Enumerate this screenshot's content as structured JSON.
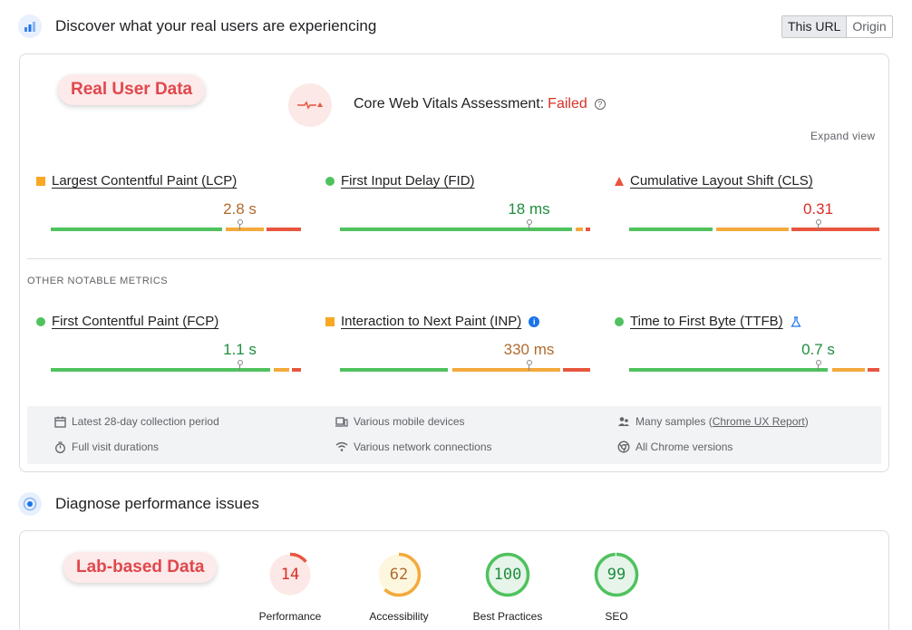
{
  "header": {
    "title": "Discover what your real users are experiencing",
    "toggle": {
      "this_url": "This URL",
      "origin": "Origin"
    }
  },
  "real_user": {
    "badge": "Real User Data",
    "assessment_label": "Core Web Vitals Assessment:",
    "assessment_status": "Failed",
    "help_glyph": "?",
    "expand_view": "Expand view",
    "core_metrics": [
      {
        "label": "Largest Contentful Paint (LCP)",
        "value": "2.8 s",
        "rating": "avg",
        "indicator": "square",
        "dist": [
          0.69,
          0.16,
          0.15
        ],
        "marker": 0.75
      },
      {
        "label": "First Input Delay (FID)",
        "value": "18 ms",
        "rating": "good",
        "indicator": "circle",
        "dist": [
          0.93,
          0.04,
          0.03
        ],
        "marker": 0.75
      },
      {
        "label": "Cumulative Layout Shift (CLS)",
        "value": "0.31",
        "rating": "poor",
        "indicator": "triangle",
        "dist": [
          0.34,
          0.3,
          0.36
        ],
        "marker": 0.75
      }
    ],
    "other_label": "OTHER NOTABLE METRICS",
    "other_metrics": [
      {
        "label": "First Contentful Paint (FCP)",
        "value": "1.1 s",
        "rating": "good",
        "indicator": "circle",
        "dist": [
          0.88,
          0.07,
          0.05
        ],
        "marker": 0.75,
        "badge": ""
      },
      {
        "label": "Interaction to Next Paint (INP)",
        "value": "330 ms",
        "rating": "avg",
        "indicator": "square",
        "dist": [
          0.44,
          0.44,
          0.12
        ],
        "marker": 0.75,
        "badge": "info"
      },
      {
        "label": "Time to First Byte (TTFB)",
        "value": "0.7 s",
        "rating": "good",
        "indicator": "circle",
        "dist": [
          0.8,
          0.14,
          0.06
        ],
        "marker": 0.75,
        "badge": "flask"
      }
    ],
    "info_glyph": "i",
    "footer": {
      "collection_period": "Latest 28-day collection period",
      "devices": "Various mobile devices",
      "samples_prefix": "Many samples (",
      "samples_link": "Chrome UX Report",
      "samples_suffix": ")",
      "visit_durations": "Full visit durations",
      "network": "Various network connections",
      "chrome_versions": "All Chrome versions"
    }
  },
  "diagnose": {
    "title": "Diagnose performance issues",
    "badge": "Lab-based Data",
    "scores": [
      {
        "label": "Performance",
        "value": 14,
        "rating": "poor"
      },
      {
        "label": "Accessibility",
        "value": 62,
        "rating": "avg"
      },
      {
        "label": "Best Practices",
        "value": 100,
        "rating": "good"
      },
      {
        "label": "SEO",
        "value": 99,
        "rating": "good"
      }
    ]
  },
  "colors": {
    "good": "#1e8e3e",
    "average": "#b06a2e",
    "poor": "#d93025",
    "good_bar": "#4fc25d",
    "average_bar": "#f4a93b",
    "poor_bar": "#e8553e",
    "badge_text": "#e0474c"
  }
}
